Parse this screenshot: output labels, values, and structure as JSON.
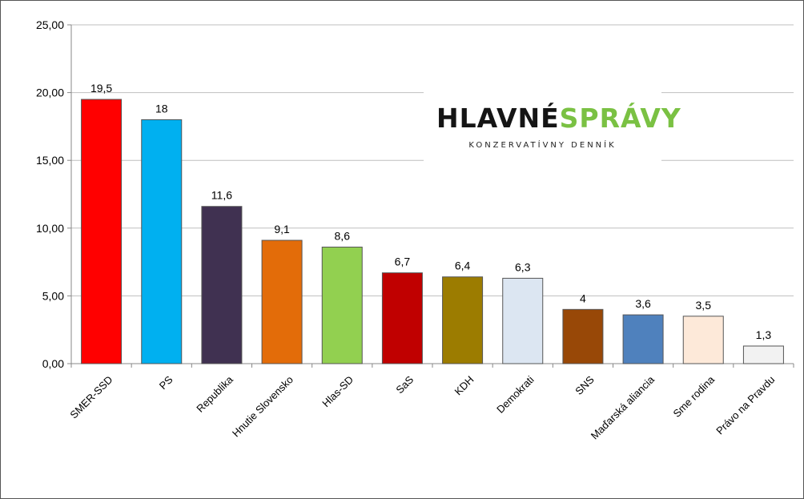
{
  "logo": {
    "main_dark": "HLAVNÉ",
    "main_green": "SPRÁVY",
    "subtitle": "KONZERVATÍVNY DENNÍK"
  },
  "chart_data": {
    "type": "bar",
    "categories": [
      "SMER-SSD",
      "PS",
      "Republika",
      "Hnutie Slovensko",
      "Hlas-SD",
      "SaS",
      "KDH",
      "Demokrati",
      "SNS",
      "Maďarská aliancia",
      "Sme rodina",
      "Právo na Pravdu"
    ],
    "values": [
      19.5,
      18,
      11.6,
      9.1,
      8.6,
      6.7,
      6.4,
      6.3,
      4,
      3.6,
      3.5,
      1.3
    ],
    "value_labels": [
      "19,5",
      "18",
      "11,6",
      "9,1",
      "8,6",
      "6,7",
      "6,4",
      "6,3",
      "4",
      "3,6",
      "3,5",
      "1,3"
    ],
    "colors": [
      "#ff0000",
      "#00b0f0",
      "#403151",
      "#e36c09",
      "#92d050",
      "#c00000",
      "#9c7c00",
      "#dce6f2",
      "#984807",
      "#4f81bd",
      "#fde9d9",
      "#f2f2f2"
    ],
    "y_ticks": [
      "0,00",
      "5,00",
      "10,00",
      "15,00",
      "20,00",
      "25,00"
    ],
    "ylim": [
      0,
      25
    ],
    "grid": true,
    "title": "",
    "xlabel": "",
    "ylabel": ""
  }
}
